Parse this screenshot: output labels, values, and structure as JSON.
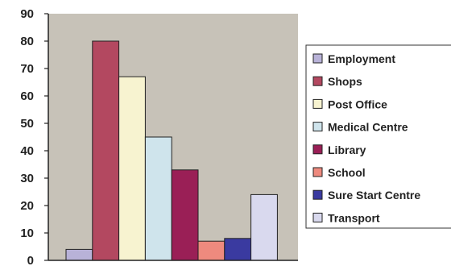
{
  "chart_data": {
    "type": "bar",
    "title": "",
    "xlabel": "",
    "ylabel": "",
    "ylim": [
      0,
      90
    ],
    "yticks": [
      0,
      10,
      20,
      30,
      40,
      50,
      60,
      70,
      80,
      90
    ],
    "grid": false,
    "legend_position": "right",
    "plot_background": "#c7c2b8",
    "series": [
      {
        "name": "Employment",
        "value": 4,
        "color": "#b8b2d8"
      },
      {
        "name": "Shops",
        "value": 80,
        "color": "#b34860"
      },
      {
        "name": "Post Office",
        "value": 67,
        "color": "#f7f3d0"
      },
      {
        "name": "Medical Centre",
        "value": 45,
        "color": "#cfe4ec"
      },
      {
        "name": "Library",
        "value": 33,
        "color": "#9a1f56"
      },
      {
        "name": "School",
        "value": 7,
        "color": "#ee8a7e"
      },
      {
        "name": "Sure Start Centre",
        "value": 8,
        "color": "#3a3aa0"
      },
      {
        "name": "Transport",
        "value": 24,
        "color": "#d9d9ee"
      }
    ]
  }
}
